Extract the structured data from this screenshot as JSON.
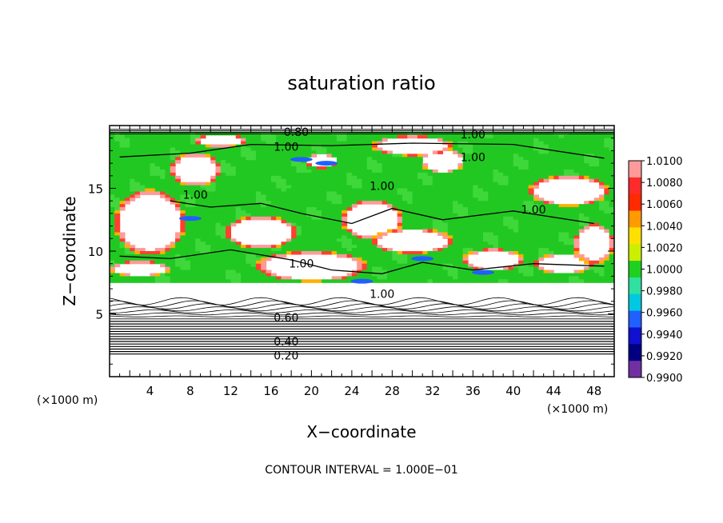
{
  "chart_data": {
    "type": "heatmap",
    "title": "saturation ratio",
    "xlabel": "X−coordinate",
    "ylabel": "Z−coordinate",
    "x_unit": "(×1000 m)",
    "y_unit": "(×1000 m)",
    "xlim": [
      0,
      50
    ],
    "ylim": [
      0,
      20
    ],
    "x_ticks": [
      4,
      8,
      12,
      16,
      20,
      24,
      28,
      32,
      36,
      40,
      44,
      48
    ],
    "y_ticks": [
      5,
      10,
      15
    ],
    "footnote": "CONTOUR INTERVAL = 1.000E−01",
    "colorbar": {
      "levels": [
        "1.0100",
        "1.0080",
        "1.0060",
        "1.0040",
        "1.0020",
        "1.0000",
        "0.9980",
        "0.9960",
        "0.9940",
        "0.9920",
        "0.9900"
      ],
      "colors": [
        "#ff9a9a",
        "#ff2a2a",
        "#ff2a00",
        "#ff9a00",
        "#ffe000",
        "#ccee00",
        "#20d020",
        "#30e0a0",
        "#00c8e0",
        "#2060ff",
        "#1010d0",
        "#000080",
        "#7030a0"
      ]
    },
    "contour_labels": [
      {
        "text": "0.80",
        "x": 18.5,
        "z": 19.5
      },
      {
        "text": "1.00",
        "x": 17.5,
        "z": 18.3
      },
      {
        "text": "1.00",
        "x": 36.0,
        "z": 19.3
      },
      {
        "text": "1.00",
        "x": 36.0,
        "z": 17.5
      },
      {
        "text": "1.00",
        "x": 8.5,
        "z": 14.5
      },
      {
        "text": "1.00",
        "x": 27.0,
        "z": 15.2
      },
      {
        "text": "1.00",
        "x": 42.0,
        "z": 13.3
      },
      {
        "text": "1.00",
        "x": 19.0,
        "z": 9.0
      },
      {
        "text": "1.00",
        "x": 27.0,
        "z": 6.6
      },
      {
        "text": "0.60",
        "x": 17.5,
        "z": 4.7
      },
      {
        "text": "0.40",
        "x": 17.5,
        "z": 2.8
      },
      {
        "text": "0.20",
        "x": 17.5,
        "z": 1.7
      }
    ]
  }
}
